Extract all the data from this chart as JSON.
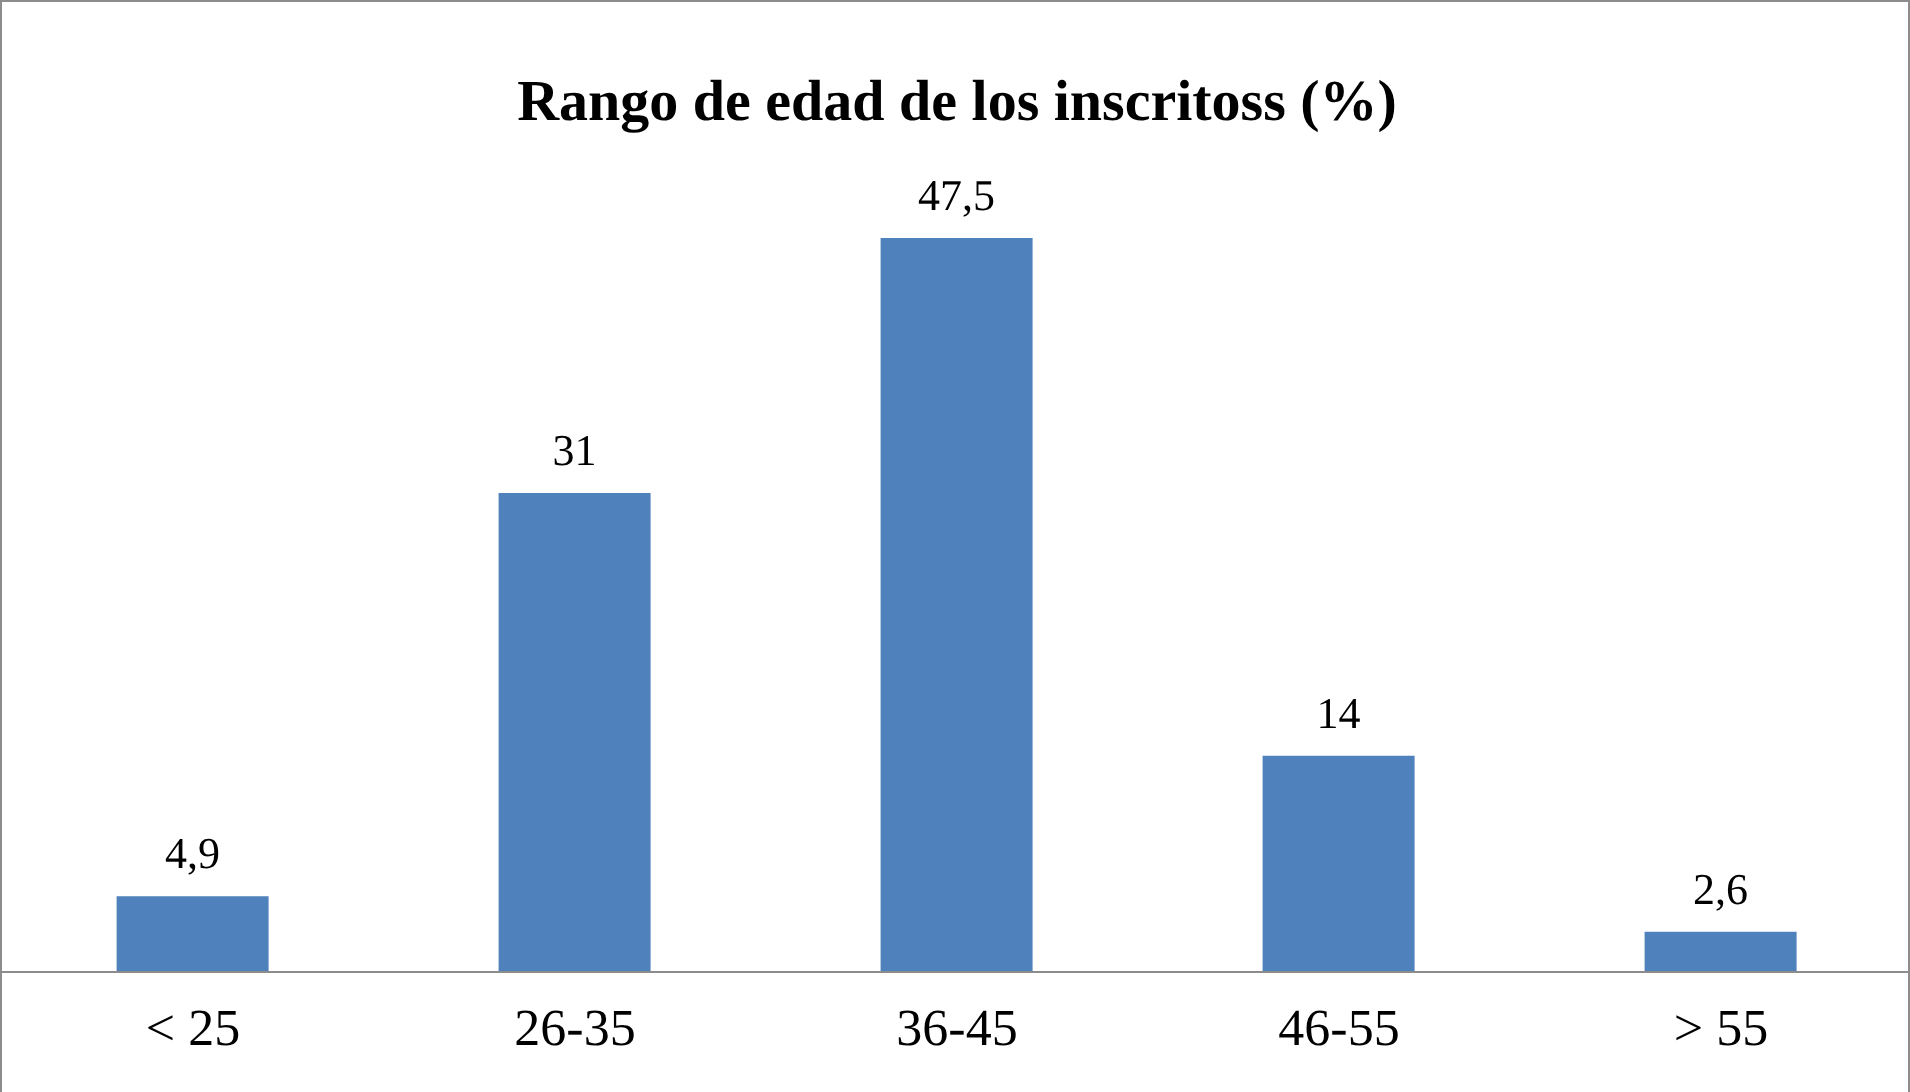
{
  "chart_data": {
    "type": "bar",
    "title": "Rango de edad de los inscritoss (%)",
    "categories": [
      "< 25",
      "26-35",
      "36-45",
      "46-55",
      "> 55"
    ],
    "values": [
      4.9,
      31,
      47.5,
      14,
      2.6
    ],
    "value_labels": [
      "4,9",
      "31",
      "47,5",
      "14",
      "2,6"
    ],
    "color": "#4f81bd",
    "grid": false,
    "legend": false
  }
}
